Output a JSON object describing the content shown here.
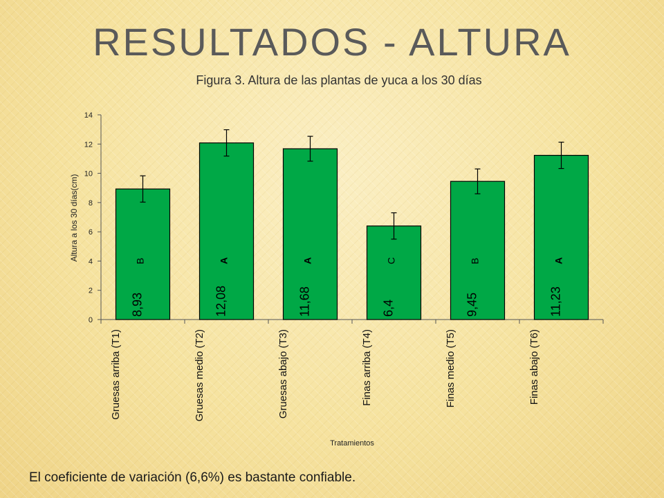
{
  "slide": {
    "title": "RESULTADOS  -  ALTURA",
    "footer_note": "El coeficiente de variación (6,6%) es bastante confiable."
  },
  "colors": {
    "bar_fill": "#00a846",
    "bar_stroke": "#000000"
  },
  "chart_data": {
    "type": "bar",
    "title": "Figura 3. Altura de las plantas de yuca a los 30 días",
    "xlabel": "Tratamientos",
    "ylabel": "Altura a los 30 días(cm)",
    "ylim": [
      0,
      14
    ],
    "yticks": [
      0,
      2,
      4,
      6,
      8,
      10,
      12,
      14
    ],
    "grid": false,
    "categories": [
      "Gruesas arriba (T1)",
      "Gruesas medio (T2)",
      "Gruesas abajo (T3)",
      "Finas arriba (T4)",
      "Finas medio (T5)",
      "Finas abajo (T6)"
    ],
    "values": [
      8.93,
      12.08,
      11.68,
      6.4,
      9.45,
      11.23
    ],
    "error": [
      0.9,
      0.9,
      0.85,
      0.9,
      0.85,
      0.9
    ],
    "data_labels": [
      "8,93",
      "12,08",
      "11,68",
      "6,4",
      "9,45",
      "11,23"
    ],
    "groups": [
      "B",
      "A",
      "A",
      "C",
      "B",
      "A"
    ]
  }
}
